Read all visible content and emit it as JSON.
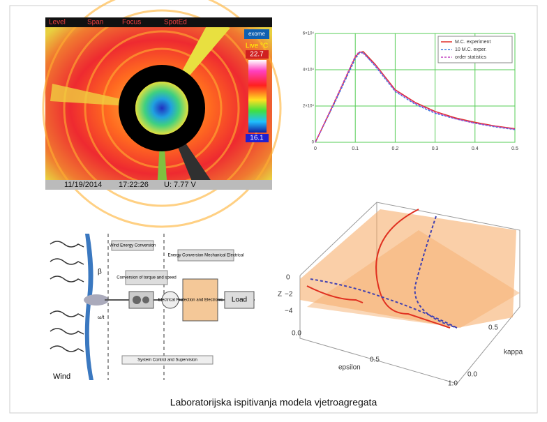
{
  "caption": "Laboratorijska ispitivanja modela vjetroagregata",
  "thermal": {
    "toolbar": [
      "Level",
      "Span",
      "Focus",
      "SpotEd"
    ],
    "brand": "exome",
    "mode": "Live °C",
    "max": "22.7",
    "min": "16.1",
    "date": "11/19/2014",
    "time": "17:22:26",
    "voltage": "U: 7.77 V"
  },
  "plot": {
    "type": "line",
    "x": [
      0,
      0.05,
      0.1,
      0.11,
      0.12,
      0.15,
      0.2,
      0.25,
      0.3,
      0.35,
      0.4,
      0.45,
      0.5
    ],
    "series": [
      {
        "name": "M.C. experiment",
        "color": "#e0302a",
        "values": [
          0,
          2.3,
          4.7,
          4.95,
          5.0,
          4.3,
          2.9,
          2.2,
          1.7,
          1.35,
          1.1,
          0.9,
          0.75
        ]
      },
      {
        "name": "10 M.C. exper.",
        "color": "#3a7be0",
        "values": [
          0,
          2.25,
          4.6,
          4.9,
          4.95,
          4.2,
          2.8,
          2.1,
          1.6,
          1.3,
          1.05,
          0.85,
          0.7
        ]
      },
      {
        "name": "order statistics",
        "color": "#c040c0",
        "values": [
          0,
          2.35,
          4.75,
          5.0,
          4.9,
          4.25,
          2.85,
          2.15,
          1.65,
          1.3,
          1.05,
          0.88,
          0.72
        ]
      }
    ],
    "xlim": [
      0,
      0.5
    ],
    "xticks": [
      0,
      0.1,
      0.2,
      0.3,
      0.4,
      0.5
    ],
    "ylim": [
      0,
      6
    ],
    "yticks": [
      0,
      {
        "value": 2,
        "label": "2×10⁴"
      },
      {
        "value": 4,
        "label": "4×10⁴"
      },
      {
        "value": 6,
        "label": "6×10⁴"
      }
    ],
    "grid": true
  },
  "diagram": {
    "wec": "Wind Energy Conversion",
    "torque": "Conversion of torque and speed",
    "energy": "Energy Conversion Mechanical Electrical",
    "converter": "Electrical Protection and Electronic Converter",
    "load": "Load",
    "control": "System Control and Supervision",
    "wind": "Wind",
    "beta": "β",
    "omega": "ω/t"
  },
  "surface": {
    "zlabel": "Z",
    "zticks": [
      "0",
      "−2",
      "−4"
    ],
    "xlabel": "epsilon",
    "xticks": [
      "0.0",
      "0.5",
      "1.0"
    ],
    "ylabel": "kappa",
    "yticks": [
      "0.0",
      "0.5"
    ]
  }
}
